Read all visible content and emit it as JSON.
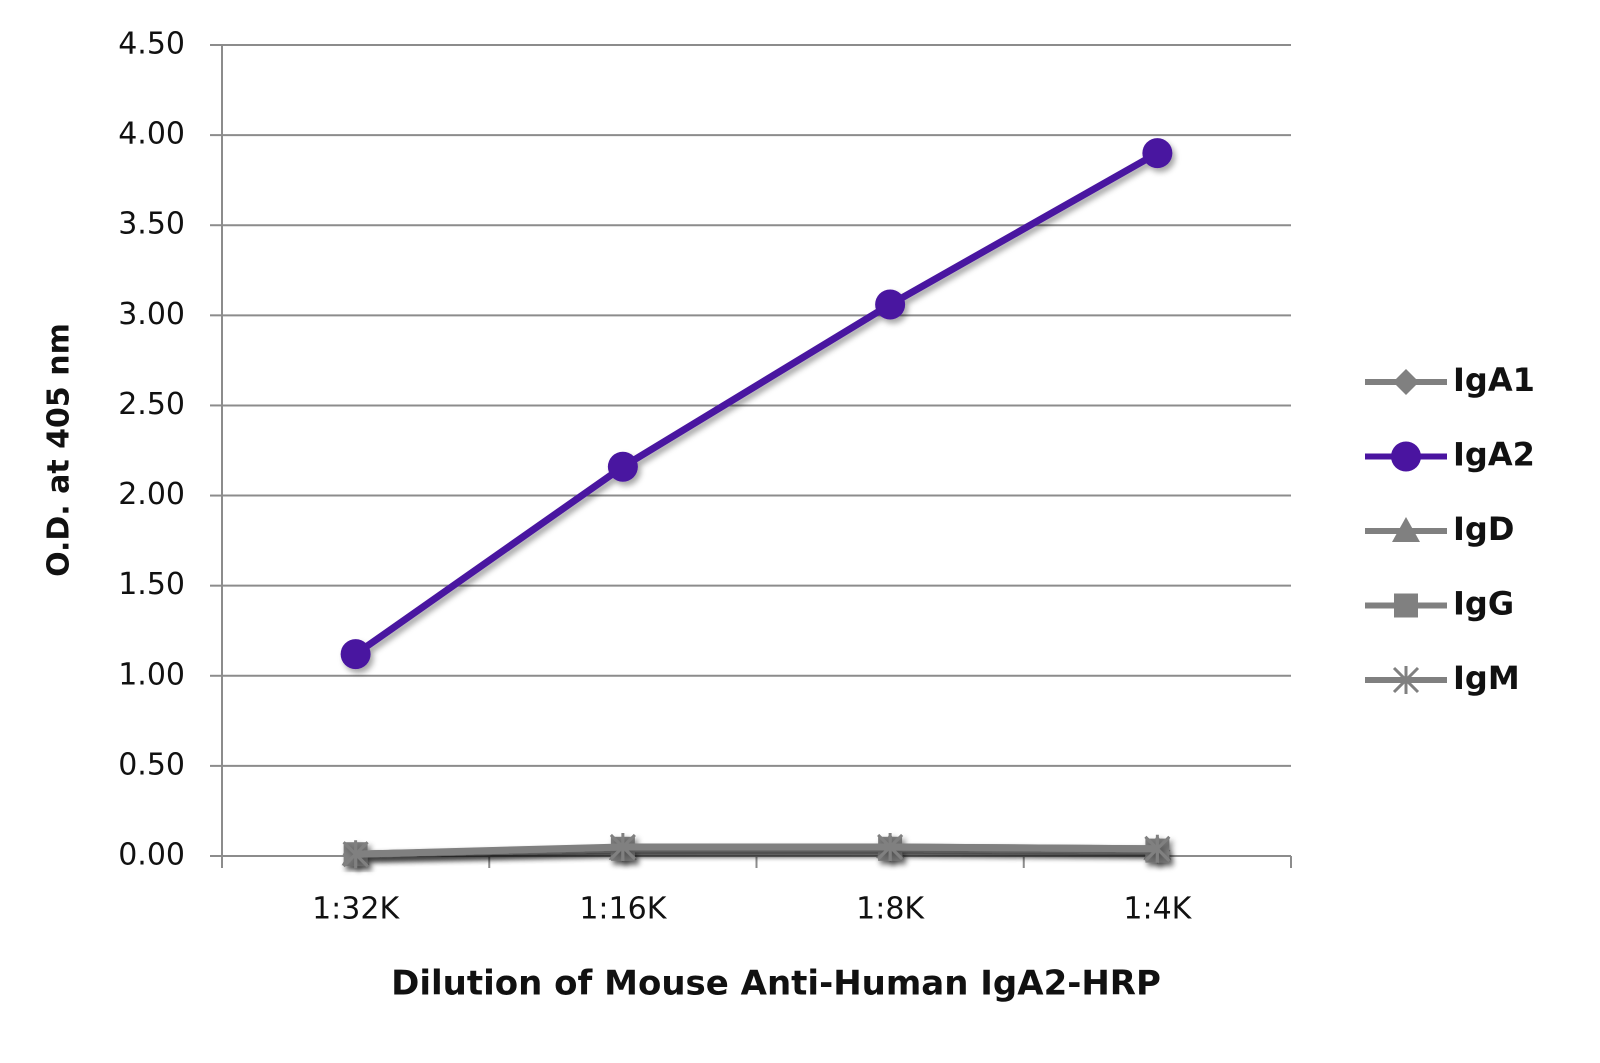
{
  "chart_data": {
    "type": "line",
    "x_label": "Dilution of Mouse Anti-Human IgA2-HRP",
    "y_label": "O.D. at 405 nm",
    "categories": [
      "1:32K",
      "1:16K",
      "1:8K",
      "1:4K"
    ],
    "ylim": [
      0,
      4.5
    ],
    "yticks": [
      {
        "value": 0,
        "label": "0.00"
      },
      {
        "value": 0.5,
        "label": "0.50"
      },
      {
        "value": 1,
        "label": "1.00"
      },
      {
        "value": 1.5,
        "label": "1.50"
      },
      {
        "value": 2,
        "label": "2.00"
      },
      {
        "value": 2.5,
        "label": "2.50"
      },
      {
        "value": 3,
        "label": "3.00"
      },
      {
        "value": 3.5,
        "label": "3.50"
      },
      {
        "value": 4,
        "label": "4.00"
      },
      {
        "value": 4.5,
        "label": "4.50"
      }
    ],
    "grid": true,
    "legend": "right",
    "series": [
      {
        "name": "IgA1",
        "color": "#808080",
        "marker": "diamond",
        "values": [
          0.01,
          0.04,
          0.04,
          0.03
        ]
      },
      {
        "name": "IgA2",
        "color": "#4a14a0",
        "marker": "circle",
        "values": [
          1.12,
          2.16,
          3.06,
          3.9
        ]
      },
      {
        "name": "IgD",
        "color": "#808080",
        "marker": "triangle",
        "values": [
          0.01,
          0.04,
          0.05,
          0.04
        ]
      },
      {
        "name": "IgG",
        "color": "#808080",
        "marker": "square",
        "values": [
          0.01,
          0.04,
          0.04,
          0.03
        ]
      },
      {
        "name": "IgM",
        "color": "#808080",
        "marker": "asterisk",
        "values": [
          0.01,
          0.05,
          0.05,
          0.04
        ]
      }
    ]
  }
}
